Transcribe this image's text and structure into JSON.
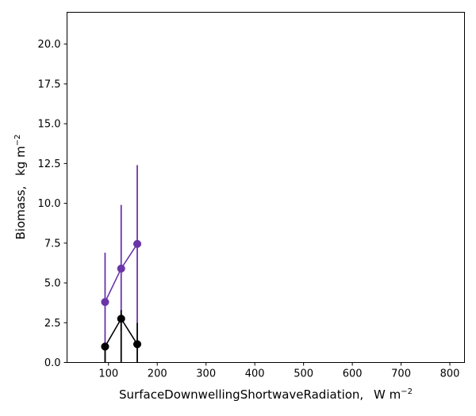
{
  "chart_data": {
    "type": "line",
    "title": "",
    "xlabel": "SurfaceDownwellingShortwaveRadiation,",
    "xlabel_unit": "W m",
    "xlabel_unit_exp": "−2",
    "ylabel": "Biomass,",
    "ylabel_unit": "kg m",
    "ylabel_unit_exp": "−2",
    "xlim": [
      15,
      830
    ],
    "ylim": [
      0,
      22
    ],
    "x_ticks": [
      100,
      200,
      300,
      400,
      500,
      600,
      700,
      800
    ],
    "x_tick_labels": [
      "100",
      "200",
      "300",
      "400",
      "500",
      "600",
      "700",
      "800"
    ],
    "y_ticks": [
      0,
      2.5,
      5,
      7.5,
      10,
      12.5,
      15,
      17.5,
      20
    ],
    "y_tick_labels": [
      "0.0",
      "2.5",
      "5.0",
      "7.5",
      "10.0",
      "12.5",
      "15.0",
      "17.5",
      "20.0"
    ],
    "grid": false,
    "series": [
      {
        "color": "#6a35a8",
        "points": [
          {
            "x": 93,
            "y": 3.8,
            "err_low": 0.0,
            "err_high": 6.9
          },
          {
            "x": 126,
            "y": 5.9,
            "err_low": 2.0,
            "err_high": 9.9
          },
          {
            "x": 159,
            "y": 7.45,
            "err_low": 2.5,
            "err_high": 12.4
          }
        ]
      },
      {
        "color": "#000000",
        "points": [
          {
            "x": 93,
            "y": 1.0,
            "err_low": 0.0,
            "err_high": 1.2
          },
          {
            "x": 126,
            "y": 2.75,
            "err_low": 0.0,
            "err_high": 3.3
          },
          {
            "x": 159,
            "y": 1.15,
            "err_low": 0.0,
            "err_high": 2.5
          }
        ]
      }
    ]
  }
}
